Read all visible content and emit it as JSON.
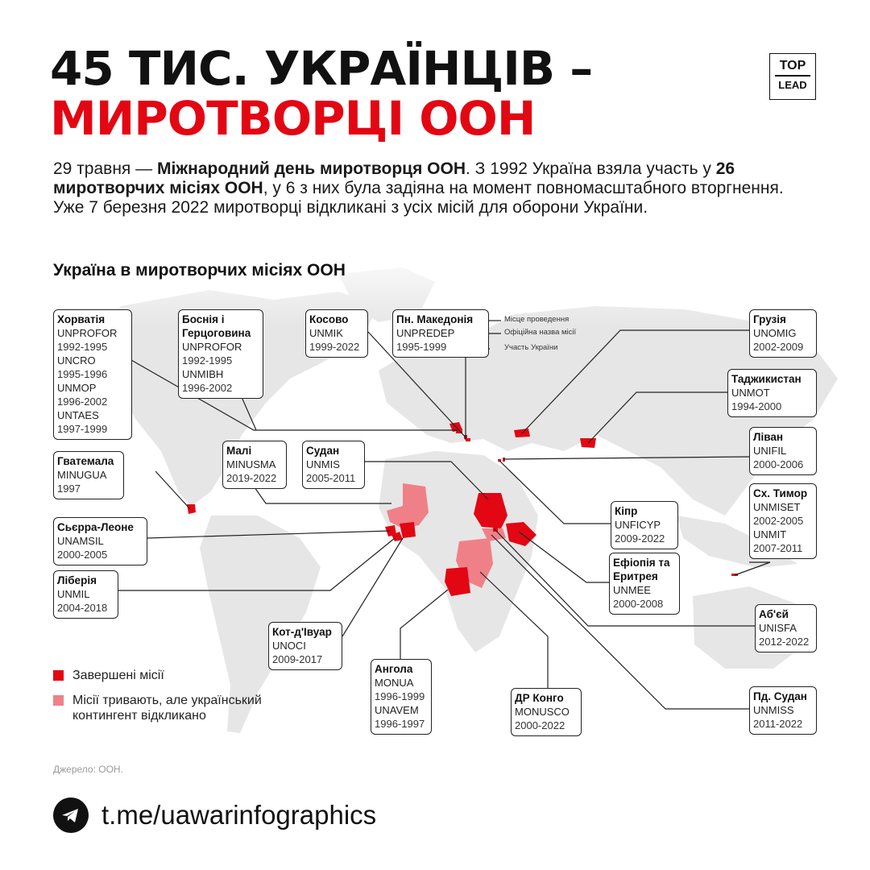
{
  "header": {
    "title_line1": "45 ТИС. УКРАЇНЦІВ –",
    "title_line2": "МИРОТВОРЦІ ООН",
    "logo_top": "TOP",
    "logo_bottom": "LEAD"
  },
  "intro": {
    "p1": "29 травня — ",
    "b1": "Міжнародний день миротворця ООН",
    "p2": ". З 1992 Україна взяла участь у ",
    "b2": "26 миротворчих місіях ООН",
    "p3": ", у 6 з них була задіяна на момент повномасштабного вторгнення. Уже 7 березня 2022 миротворці відкликані з усіх місій для оборони України."
  },
  "subtitle": "Україна в миротворчих місіях ООН",
  "colors": {
    "completed": "#e30613",
    "ongoing": "#f08088",
    "land": "#e4e4e4",
    "accent": "#e30613"
  },
  "missions": [
    {
      "country": "Хорватія",
      "missions": [
        {
          "name": "UNPROFOR",
          "years": "1992-1995"
        },
        {
          "name": "UNCRO",
          "years": "1995-1996"
        },
        {
          "name": "UNMOP",
          "years": "1996-2002"
        },
        {
          "name": "UNTAES",
          "years": "1997-1999"
        }
      ]
    },
    {
      "country": "Боснія і Герцоговина",
      "missions": [
        {
          "name": "UNPROFOR",
          "years": "1992-1995"
        },
        {
          "name": "UNMIBH",
          "years": "1996-2002"
        }
      ]
    },
    {
      "country": "Косово",
      "missions": [
        {
          "name": "UNMIK",
          "years": "1999-2022"
        }
      ]
    },
    {
      "country": "Пн. Македонія",
      "missions": [
        {
          "name": "UNPREDEP",
          "years": "1995-1999"
        }
      ]
    },
    {
      "country": "Грузія",
      "missions": [
        {
          "name": "UNOMIG",
          "years": "2002-2009"
        }
      ]
    },
    {
      "country": "Таджикистан",
      "missions": [
        {
          "name": "UNMOT",
          "years": "1994-2000"
        }
      ]
    },
    {
      "country": "Ліван",
      "missions": [
        {
          "name": "UNIFIL",
          "years": "2000-2006"
        }
      ]
    },
    {
      "country": "Сх. Тимор",
      "missions": [
        {
          "name": "UNMISET",
          "years": "2002-2005"
        },
        {
          "name": "UNMIT",
          "years": "2007-2011"
        }
      ]
    },
    {
      "country": "Гватемала",
      "missions": [
        {
          "name": "MINUGUA",
          "years": "1997"
        }
      ]
    },
    {
      "country": "Малі",
      "missions": [
        {
          "name": "MINUSMA",
          "years": "2019-2022"
        }
      ]
    },
    {
      "country": "Судан",
      "missions": [
        {
          "name": "UNMIS",
          "years": "2005-2011"
        }
      ]
    },
    {
      "country": "Кіпр",
      "missions": [
        {
          "name": "UNFICYP",
          "years": "2009-2022"
        }
      ]
    },
    {
      "country": "Ефіопія та Еритрея",
      "missions": [
        {
          "name": "UNMEE",
          "years": "2000-2008"
        }
      ]
    },
    {
      "country": "Сьєрра-Леоне",
      "missions": [
        {
          "name": "UNAMSIL",
          "years": "2000-2005"
        }
      ]
    },
    {
      "country": "Ліберія",
      "missions": [
        {
          "name": "UNMIL",
          "years": "2004-2018"
        }
      ]
    },
    {
      "country": "Аб'єй",
      "missions": [
        {
          "name": "UNISFA",
          "years": "2012-2022"
        }
      ]
    },
    {
      "country": "Кот-д'Івуар",
      "missions": [
        {
          "name": "UNOCI",
          "years": "2009-2017"
        }
      ]
    },
    {
      "country": "Ангола",
      "missions": [
        {
          "name": "MONUA",
          "years": "1996-1999"
        },
        {
          "name": "UNAVEM",
          "years": "1996-1997"
        }
      ]
    },
    {
      "country": "ДР Конго",
      "missions": [
        {
          "name": "MONUSCO",
          "years": "2000-2022"
        }
      ]
    },
    {
      "country": "Пд. Судан",
      "missions": [
        {
          "name": "UNMISS",
          "years": "2011-2022"
        }
      ]
    }
  ],
  "annotations": {
    "place": "Місце проведення",
    "official": "Офіційна назва місії",
    "participation": "Участь України"
  },
  "legend": {
    "completed": "Завершені місії",
    "ongoing": "Місії тривають, але український контингент відкликано"
  },
  "source": "Джерело: ООН.",
  "footer": {
    "link": "t.me/uawarinfographics",
    "icon": "telegram-icon"
  }
}
